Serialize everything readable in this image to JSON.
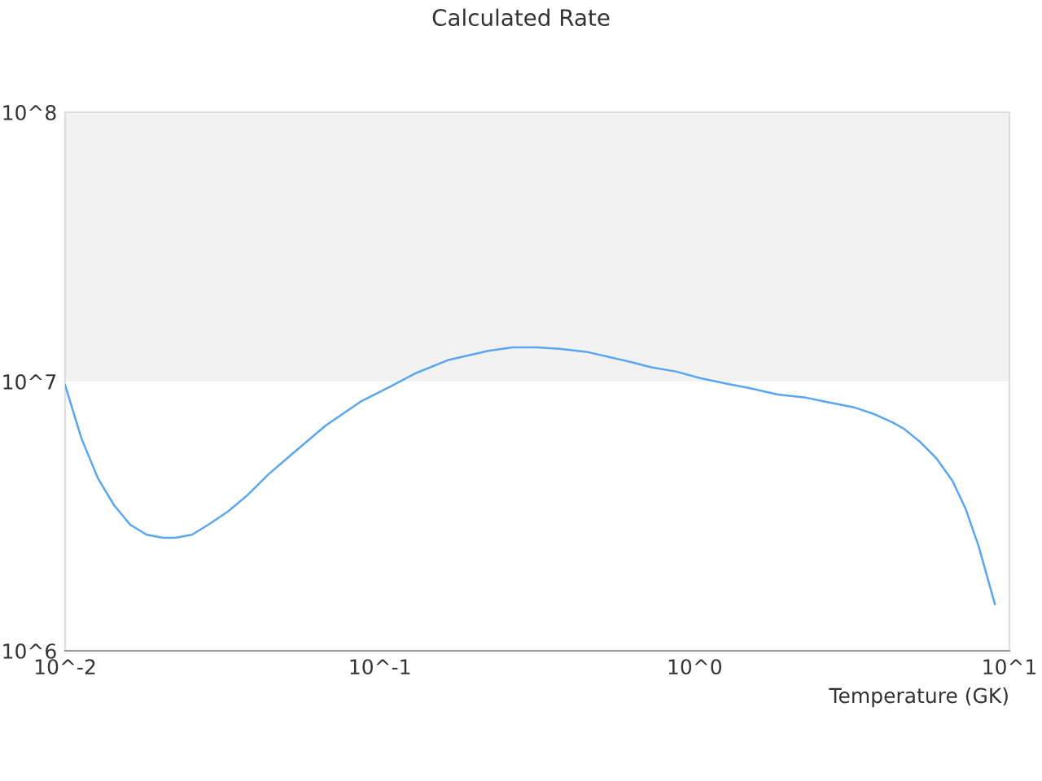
{
  "chart_data": {
    "type": "line",
    "title": "Calculated Rate",
    "xlabel": "Temperature (GK)",
    "log": "xy",
    "grid": false,
    "marker": "none",
    "line_style": "solid",
    "xlim": [
      0.01,
      10
    ],
    "xticks": [
      {
        "value": 0.01,
        "label": "10^-2"
      },
      {
        "value": 0.1,
        "label": "10^-1"
      },
      {
        "value": 1,
        "label": "10^0"
      },
      {
        "value": 10,
        "label": "10^1"
      }
    ],
    "ylim": [
      1000000,
      100000000
    ],
    "yticks": [
      {
        "value": 1000000,
        "label": "10^6"
      },
      {
        "value": 10000000,
        "label": "10^7"
      },
      {
        "value": 100000000,
        "label": "10^8"
      }
    ],
    "bands": [
      {
        "axis": "y",
        "from": 10000000,
        "to": 100000000,
        "color": "#f2f2f2"
      }
    ],
    "x": [
      0.01,
      0.01127,
      0.01268,
      0.01429,
      0.0161,
      0.01815,
      0.02043,
      0.02248,
      0.0253,
      0.0285,
      0.0329,
      0.0379,
      0.0443,
      0.053,
      0.0673,
      0.0874,
      0.108,
      0.129,
      0.164,
      0.221,
      0.264,
      0.316,
      0.378,
      0.452,
      0.541,
      0.631,
      0.728,
      0.871,
      1.04,
      1.24,
      1.49,
      1.84,
      2.26,
      2.7,
      3.23,
      3.72,
      4.25,
      4.62,
      5.2,
      5.85,
      6.59,
      7.25,
      7.98,
      8.99
    ],
    "series": [
      {
        "color": "#5aa6f0",
        "values": [
          9700000,
          6150000,
          4400000,
          3480000,
          2940000,
          2700000,
          2630000,
          2630000,
          2700000,
          2940000,
          3290000,
          3780000,
          4530000,
          5420000,
          6870000,
          8460000,
          9590000,
          10700000,
          12000000,
          13000000,
          13400000,
          13400000,
          13200000,
          12900000,
          12300000,
          11800000,
          11300000,
          10900000,
          10300000,
          9860000,
          9460000,
          8950000,
          8710000,
          8340000,
          8000000,
          7570000,
          7060000,
          6680000,
          5970000,
          5200000,
          4280000,
          3380000,
          2450000,
          1490000
        ]
      }
    ]
  }
}
